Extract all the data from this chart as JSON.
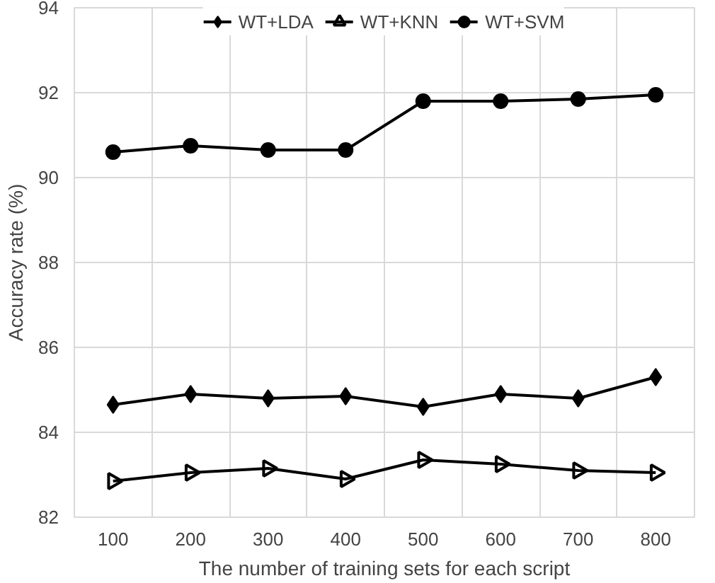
{
  "chart_data": {
    "type": "line",
    "xlabel": "The number of training sets for each script",
    "ylabel": "Accuracy rate (%)",
    "categories": [
      "100",
      "200",
      "300",
      "400",
      "500",
      "600",
      "700",
      "800"
    ],
    "series": [
      {
        "name": "WT+LDA",
        "color": "#000000",
        "marker": "diamond",
        "values": [
          84.65,
          84.9,
          84.8,
          84.85,
          84.6,
          84.9,
          84.8,
          85.3
        ]
      },
      {
        "name": "WT+KNN",
        "color": "#000000",
        "marker": "triangle",
        "values": [
          82.85,
          83.05,
          83.15,
          82.9,
          83.35,
          83.25,
          83.1,
          83.05
        ]
      },
      {
        "name": "WT+SVM",
        "color": "#000000",
        "marker": "circle",
        "values": [
          90.6,
          90.75,
          90.65,
          90.65,
          91.8,
          91.8,
          91.85,
          91.95
        ]
      }
    ],
    "ylim": [
      82,
      94
    ],
    "yticks": [
      82,
      84,
      86,
      88,
      90,
      92,
      94
    ],
    "grid": true,
    "legend": "top",
    "line_style": "solid"
  }
}
